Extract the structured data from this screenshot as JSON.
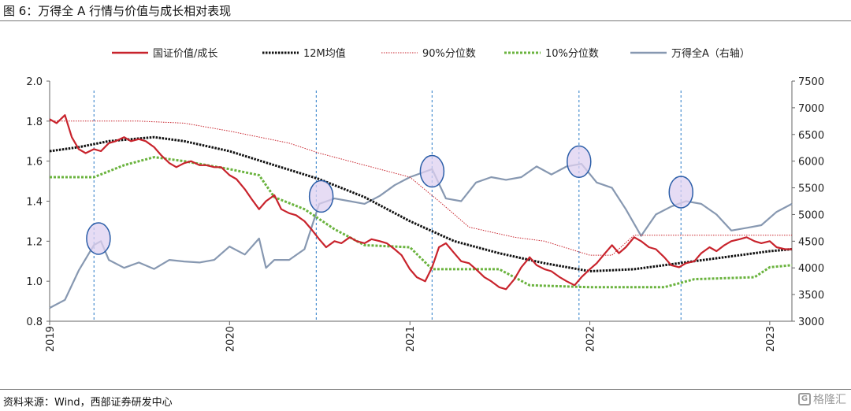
{
  "figure": {
    "title": "图 6：万得全 A 行情与价值与成长相对表现",
    "source": "资料来源：Wind，西部证券研发中心",
    "watermark": "格隆汇"
  },
  "chart_data": {
    "type": "line",
    "x_axis": {
      "type": "date",
      "range": [
        "2019-01-01",
        "2023-02-15"
      ],
      "tick_labels": [
        "2019",
        "2020",
        "2021",
        "2022",
        "2023"
      ]
    },
    "y_left": {
      "range": [
        0.8,
        2.0
      ],
      "ticks": [
        "0.8",
        "1.0",
        "1.2",
        "1.4",
        "1.6",
        "1.8",
        "2.0"
      ]
    },
    "y_right": {
      "range": [
        3000,
        7500
      ],
      "ticks": [
        "3000",
        "3500",
        "4000",
        "4500",
        "5000",
        "5500",
        "6000",
        "6500",
        "7000",
        "7500"
      ]
    },
    "legend_position": "top",
    "grid": false,
    "series": [
      {
        "name": "国证价值/成长",
        "axis": "left",
        "style": "solid",
        "color": "#c8232c",
        "points": [
          [
            "2019-01-01",
            1.81
          ],
          [
            "2019-01-15",
            1.79
          ],
          [
            "2019-02-01",
            1.83
          ],
          [
            "2019-02-15",
            1.72
          ],
          [
            "2019-03-01",
            1.66
          ],
          [
            "2019-03-15",
            1.64
          ],
          [
            "2019-04-01",
            1.66
          ],
          [
            "2019-04-15",
            1.65
          ],
          [
            "2019-05-01",
            1.69
          ],
          [
            "2019-05-15",
            1.7
          ],
          [
            "2019-06-01",
            1.72
          ],
          [
            "2019-06-15",
            1.7
          ],
          [
            "2019-07-01",
            1.71
          ],
          [
            "2019-07-15",
            1.7
          ],
          [
            "2019-08-01",
            1.67
          ],
          [
            "2019-08-15",
            1.63
          ],
          [
            "2019-09-01",
            1.59
          ],
          [
            "2019-09-15",
            1.57
          ],
          [
            "2019-10-01",
            1.59
          ],
          [
            "2019-10-15",
            1.6
          ],
          [
            "2019-11-01",
            1.58
          ],
          [
            "2019-11-15",
            1.58
          ],
          [
            "2019-12-01",
            1.57
          ],
          [
            "2019-12-15",
            1.57
          ],
          [
            "2020-01-01",
            1.53
          ],
          [
            "2020-01-15",
            1.51
          ],
          [
            "2020-02-01",
            1.46
          ],
          [
            "2020-02-15",
            1.41
          ],
          [
            "2020-03-01",
            1.36
          ],
          [
            "2020-03-15",
            1.4
          ],
          [
            "2020-04-01",
            1.43
          ],
          [
            "2020-04-15",
            1.36
          ],
          [
            "2020-05-01",
            1.34
          ],
          [
            "2020-05-15",
            1.33
          ],
          [
            "2020-06-01",
            1.3
          ],
          [
            "2020-06-15",
            1.26
          ],
          [
            "2020-07-01",
            1.21
          ],
          [
            "2020-07-15",
            1.17
          ],
          [
            "2020-08-01",
            1.2
          ],
          [
            "2020-08-15",
            1.19
          ],
          [
            "2020-09-01",
            1.22
          ],
          [
            "2020-09-15",
            1.2
          ],
          [
            "2020-10-01",
            1.19
          ],
          [
            "2020-10-15",
            1.21
          ],
          [
            "2020-11-01",
            1.2
          ],
          [
            "2020-11-15",
            1.19
          ],
          [
            "2020-12-01",
            1.16
          ],
          [
            "2020-12-15",
            1.13
          ],
          [
            "2021-01-01",
            1.06
          ],
          [
            "2021-01-15",
            1.02
          ],
          [
            "2021-02-01",
            1.0
          ],
          [
            "2021-02-15",
            1.07
          ],
          [
            "2021-03-01",
            1.17
          ],
          [
            "2021-03-15",
            1.19
          ],
          [
            "2021-04-01",
            1.14
          ],
          [
            "2021-04-15",
            1.1
          ],
          [
            "2021-05-01",
            1.09
          ],
          [
            "2021-05-15",
            1.06
          ],
          [
            "2021-06-01",
            1.02
          ],
          [
            "2021-06-15",
            1.0
          ],
          [
            "2021-07-01",
            0.97
          ],
          [
            "2021-07-15",
            0.96
          ],
          [
            "2021-08-01",
            1.01
          ],
          [
            "2021-08-15",
            1.07
          ],
          [
            "2021-09-01",
            1.12
          ],
          [
            "2021-09-15",
            1.08
          ],
          [
            "2021-10-01",
            1.06
          ],
          [
            "2021-10-15",
            1.05
          ],
          [
            "2021-11-01",
            1.02
          ],
          [
            "2021-11-15",
            1.0
          ],
          [
            "2021-12-01",
            0.98
          ],
          [
            "2021-12-15",
            1.02
          ],
          [
            "2022-01-01",
            1.06
          ],
          [
            "2022-01-15",
            1.09
          ],
          [
            "2022-02-01",
            1.14
          ],
          [
            "2022-02-15",
            1.18
          ],
          [
            "2022-03-01",
            1.14
          ],
          [
            "2022-03-15",
            1.17
          ],
          [
            "2022-04-01",
            1.22
          ],
          [
            "2022-04-15",
            1.2
          ],
          [
            "2022-05-01",
            1.17
          ],
          [
            "2022-05-15",
            1.16
          ],
          [
            "2022-06-01",
            1.12
          ],
          [
            "2022-06-15",
            1.08
          ],
          [
            "2022-07-01",
            1.07
          ],
          [
            "2022-07-15",
            1.09
          ],
          [
            "2022-08-01",
            1.1
          ],
          [
            "2022-08-15",
            1.14
          ],
          [
            "2022-09-01",
            1.17
          ],
          [
            "2022-09-15",
            1.15
          ],
          [
            "2022-10-01",
            1.18
          ],
          [
            "2022-10-15",
            1.2
          ],
          [
            "2022-11-01",
            1.21
          ],
          [
            "2022-11-15",
            1.22
          ],
          [
            "2022-12-01",
            1.2
          ],
          [
            "2022-12-15",
            1.19
          ],
          [
            "2023-01-01",
            1.2
          ],
          [
            "2023-01-15",
            1.17
          ],
          [
            "2023-02-01",
            1.16
          ],
          [
            "2023-02-15",
            1.16
          ]
        ]
      },
      {
        "name": "12M均值",
        "axis": "left",
        "style": "dotted",
        "color": "#111111",
        "points": [
          [
            "2019-01-01",
            1.65
          ],
          [
            "2019-03-01",
            1.67
          ],
          [
            "2019-05-01",
            1.7
          ],
          [
            "2019-08-01",
            1.72
          ],
          [
            "2019-10-01",
            1.7
          ],
          [
            "2020-01-01",
            1.65
          ],
          [
            "2020-04-01",
            1.58
          ],
          [
            "2020-07-01",
            1.51
          ],
          [
            "2020-10-01",
            1.42
          ],
          [
            "2021-01-01",
            1.3
          ],
          [
            "2021-04-01",
            1.2
          ],
          [
            "2021-07-01",
            1.14
          ],
          [
            "2021-10-01",
            1.09
          ],
          [
            "2022-01-01",
            1.05
          ],
          [
            "2022-04-01",
            1.06
          ],
          [
            "2022-07-01",
            1.09
          ],
          [
            "2022-10-01",
            1.12
          ],
          [
            "2023-01-01",
            1.15
          ],
          [
            "2023-02-15",
            1.16
          ]
        ]
      },
      {
        "name": "90%分位数",
        "axis": "left",
        "style": "dotted",
        "color": "#c8232c",
        "points": [
          [
            "2019-01-01",
            1.8
          ],
          [
            "2019-07-01",
            1.8
          ],
          [
            "2019-10-01",
            1.79
          ],
          [
            "2020-01-01",
            1.75
          ],
          [
            "2020-05-01",
            1.69
          ],
          [
            "2020-07-01",
            1.64
          ],
          [
            "2020-10-01",
            1.58
          ],
          [
            "2021-01-01",
            1.52
          ],
          [
            "2021-03-01",
            1.4
          ],
          [
            "2021-05-01",
            1.27
          ],
          [
            "2021-08-01",
            1.22
          ],
          [
            "2021-10-01",
            1.2
          ],
          [
            "2022-01-01",
            1.13
          ],
          [
            "2022-02-15",
            1.13
          ],
          [
            "2022-04-01",
            1.23
          ],
          [
            "2022-06-01",
            1.23
          ],
          [
            "2023-02-15",
            1.23
          ]
        ]
      },
      {
        "name": "10%分位数",
        "axis": "left",
        "style": "dotted",
        "color": "#6ab33e",
        "points": [
          [
            "2019-01-01",
            1.52
          ],
          [
            "2019-04-01",
            1.52
          ],
          [
            "2019-06-01",
            1.58
          ],
          [
            "2019-08-01",
            1.62
          ],
          [
            "2019-10-01",
            1.6
          ],
          [
            "2020-01-01",
            1.56
          ],
          [
            "2020-03-01",
            1.53
          ],
          [
            "2020-04-01",
            1.42
          ],
          [
            "2020-06-01",
            1.36
          ],
          [
            "2020-08-01",
            1.26
          ],
          [
            "2020-10-01",
            1.18
          ],
          [
            "2021-01-01",
            1.17
          ],
          [
            "2021-02-15",
            1.06
          ],
          [
            "2021-07-01",
            1.06
          ],
          [
            "2021-09-01",
            0.98
          ],
          [
            "2022-01-01",
            0.97
          ],
          [
            "2022-06-01",
            0.97
          ],
          [
            "2022-08-01",
            1.01
          ],
          [
            "2022-12-01",
            1.02
          ],
          [
            "2023-01-01",
            1.07
          ],
          [
            "2023-02-15",
            1.08
          ]
        ]
      },
      {
        "name": "万得全A（右轴）",
        "axis": "right",
        "style": "solid",
        "color": "#8798b1",
        "points": [
          [
            "2019-01-01",
            3250
          ],
          [
            "2019-02-01",
            3400
          ],
          [
            "2019-03-01",
            3950
          ],
          [
            "2019-04-01",
            4430
          ],
          [
            "2019-04-15",
            4500
          ],
          [
            "2019-05-01",
            4150
          ],
          [
            "2019-06-01",
            4000
          ],
          [
            "2019-07-01",
            4100
          ],
          [
            "2019-08-01",
            3980
          ],
          [
            "2019-09-01",
            4150
          ],
          [
            "2019-10-01",
            4120
          ],
          [
            "2019-11-01",
            4100
          ],
          [
            "2019-12-01",
            4150
          ],
          [
            "2020-01-01",
            4400
          ],
          [
            "2020-02-01",
            4250
          ],
          [
            "2020-03-01",
            4550
          ],
          [
            "2020-03-15",
            4000
          ],
          [
            "2020-04-01",
            4150
          ],
          [
            "2020-05-01",
            4150
          ],
          [
            "2020-06-01",
            4350
          ],
          [
            "2020-07-01",
            5200
          ],
          [
            "2020-08-01",
            5300
          ],
          [
            "2020-09-01",
            5250
          ],
          [
            "2020-10-01",
            5200
          ],
          [
            "2020-11-01",
            5350
          ],
          [
            "2020-12-01",
            5550
          ],
          [
            "2021-01-01",
            5700
          ],
          [
            "2021-02-15",
            5850
          ],
          [
            "2021-03-15",
            5300
          ],
          [
            "2021-04-15",
            5250
          ],
          [
            "2021-05-15",
            5600
          ],
          [
            "2021-06-15",
            5700
          ],
          [
            "2021-07-15",
            5650
          ],
          [
            "2021-08-15",
            5700
          ],
          [
            "2021-09-15",
            5900
          ],
          [
            "2021-10-15",
            5750
          ],
          [
            "2021-11-15",
            5900
          ],
          [
            "2021-12-15",
            5950
          ],
          [
            "2022-01-15",
            5600
          ],
          [
            "2022-02-15",
            5500
          ],
          [
            "2022-03-15",
            5100
          ],
          [
            "2022-04-15",
            4600
          ],
          [
            "2022-05-15",
            5000
          ],
          [
            "2022-06-15",
            5150
          ],
          [
            "2022-07-15",
            5250
          ],
          [
            "2022-08-15",
            5200
          ],
          [
            "2022-09-15",
            5000
          ],
          [
            "2022-10-15",
            4700
          ],
          [
            "2022-11-15",
            4750
          ],
          [
            "2022-12-15",
            4800
          ],
          [
            "2023-01-15",
            5050
          ],
          [
            "2023-02-15",
            5200
          ]
        ]
      }
    ],
    "reference_lines": {
      "style": "dashed",
      "color": "#4a8fd0",
      "dates": [
        "2019-04-01",
        "2020-06-25",
        "2021-02-15",
        "2021-12-10",
        "2022-07-05"
      ]
    },
    "annotations": {
      "type": "circle",
      "color": "#ddd0f0",
      "points": [
        [
          "2019-04-10",
          4550
        ],
        [
          "2020-07-05",
          5340
        ],
        [
          "2021-02-15",
          5810
        ],
        [
          "2021-12-10",
          5990
        ],
        [
          "2022-07-05",
          5420
        ]
      ]
    }
  }
}
